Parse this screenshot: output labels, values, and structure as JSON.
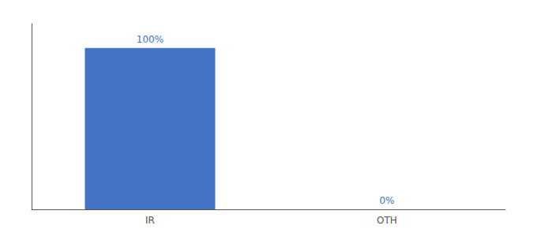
{
  "chart_data": {
    "type": "bar",
    "categories": [
      "IR",
      "OTH"
    ],
    "values": [
      100,
      0
    ],
    "value_labels": [
      "100%",
      "0%"
    ],
    "data_labels": true,
    "color": "#4472c4",
    "ylim": [
      0,
      115
    ],
    "tick_labels": "x",
    "grid": false
  }
}
